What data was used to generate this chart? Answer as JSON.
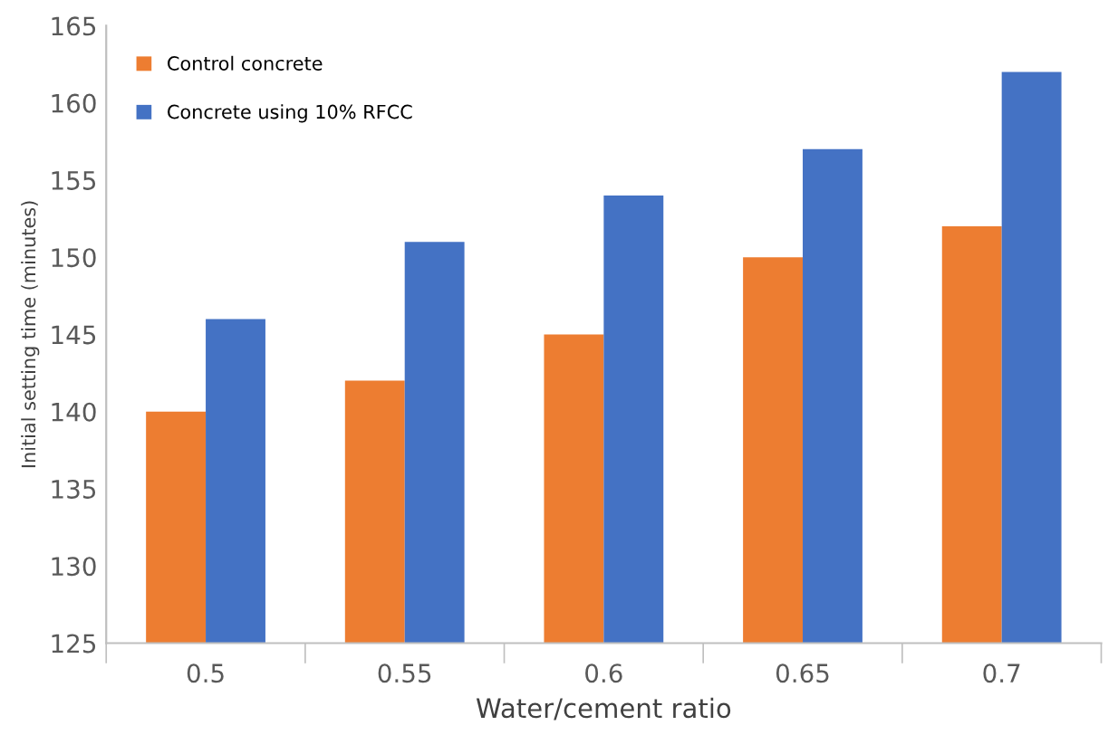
{
  "chart_data": {
    "type": "bar",
    "xlabel": "Water/cement ratio",
    "ylabel": "Initial setting time (minutes)",
    "categories": [
      "0.5",
      "0.55",
      "0.6",
      "0.65",
      "0.7"
    ],
    "series": [
      {
        "name": "Control concrete",
        "color": "#ed7d31",
        "values": [
          140,
          142,
          145,
          150,
          152
        ]
      },
      {
        "name": "Concrete using 10% RFCC",
        "color": "#4472c4",
        "values": [
          146,
          151,
          154,
          157,
          162
        ]
      }
    ],
    "ylim": [
      125,
      165
    ],
    "yticks": [
      125,
      130,
      135,
      140,
      145,
      150,
      155,
      160,
      165
    ],
    "grid": false,
    "legend": "top left"
  }
}
